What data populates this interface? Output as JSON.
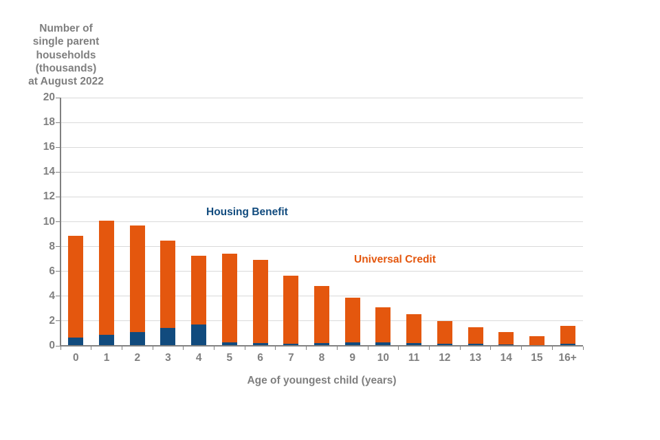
{
  "chart_data": {
    "type": "bar",
    "stacked": true,
    "title": "Number of\nsingle parent\nhouseholds\n(thousands)\nat August 2022",
    "xlabel": "Age of youngest child (years)",
    "ylabel": "Number of single parent households (thousands) at August 2022",
    "categories": [
      "0",
      "1",
      "2",
      "3",
      "4",
      "5",
      "6",
      "7",
      "8",
      "9",
      "10",
      "11",
      "12",
      "13",
      "14",
      "15",
      "16+"
    ],
    "series": [
      {
        "name": "Housing Benefit",
        "color": "#114B7E",
        "values": [
          0.65,
          0.9,
          1.1,
          1.45,
          1.7,
          0.25,
          0.2,
          0.15,
          0.2,
          0.3,
          0.25,
          0.2,
          0.15,
          0.15,
          0.1,
          0.05,
          0.15
        ]
      },
      {
        "name": "Universal Credit",
        "color": "#E4570E",
        "values": [
          8.2,
          9.2,
          8.6,
          7.0,
          5.55,
          7.15,
          6.7,
          5.5,
          4.6,
          3.6,
          2.85,
          2.35,
          1.85,
          1.35,
          1.0,
          0.75,
          1.45
        ]
      }
    ],
    "totals": [
      8.85,
      10.1,
      9.7,
      8.45,
      7.25,
      7.4,
      6.9,
      5.65,
      4.8,
      3.9,
      3.1,
      2.55,
      2.0,
      1.5,
      1.1,
      0.8,
      1.6
    ],
    "ylim": [
      0,
      20
    ],
    "ytick_step": 2,
    "grid": true,
    "legend_position": "inline-annotations",
    "colors": {
      "axis_text": "#7F7F7F",
      "gridline": "#D9D9D9",
      "axis_line": "#808080"
    }
  }
}
